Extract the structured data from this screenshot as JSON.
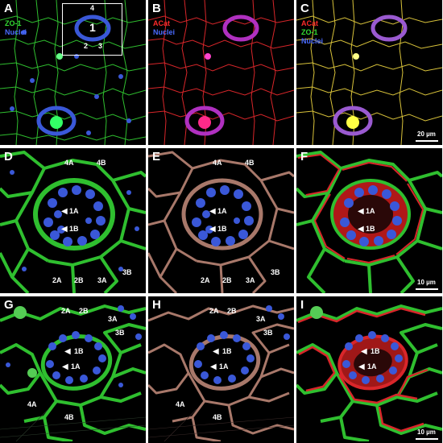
{
  "panels": [
    {
      "letter": "A",
      "channels": [
        {
          "text": "ZO-1",
          "color": "#33dd33"
        },
        {
          "text": "Nuclei",
          "color": "#4a6bff"
        }
      ],
      "inset": [
        "4",
        "1",
        "2",
        "3"
      ]
    },
    {
      "letter": "B",
      "channels": [
        {
          "text": "ACat",
          "color": "#ff2a2a"
        },
        {
          "text": "Nuclei",
          "color": "#4a6bff"
        }
      ]
    },
    {
      "letter": "C",
      "channels": [
        {
          "text": "ACat",
          "color": "#ff2a2a"
        },
        {
          "text": "ZO-1",
          "color": "#33dd33"
        },
        {
          "text": "Nuclei",
          "color": "#4a6bff"
        }
      ],
      "scale": "20 µm"
    },
    {
      "letter": "D",
      "labels": [
        "4A",
        "4B",
        "1A",
        "1B",
        "2A",
        "2B",
        "3A",
        "3B"
      ]
    },
    {
      "letter": "E",
      "labels": [
        "4A",
        "4B",
        "1A",
        "1B",
        "2A",
        "2B",
        "3A",
        "3B"
      ]
    },
    {
      "letter": "F",
      "labels": [
        "1A",
        "1B"
      ],
      "scale": "10 µm"
    },
    {
      "letter": "G",
      "labels": [
        "2A",
        "2B",
        "3A",
        "3B",
        "1B",
        "1A",
        "4A",
        "4B"
      ]
    },
    {
      "letter": "H",
      "labels": [
        "2A",
        "2B",
        "3A",
        "3B",
        "1B",
        "1A",
        "4A",
        "4B"
      ]
    },
    {
      "letter": "I",
      "labels": [
        "1B",
        "1A"
      ],
      "scale": "10 µm"
    }
  ],
  "colors": {
    "green": "#2fbf2f",
    "red": "#d8262a",
    "copper": "#a8786a",
    "blue": "#3a58d8",
    "magenta": "#d22ad0",
    "yellow": "#e8e83a"
  }
}
